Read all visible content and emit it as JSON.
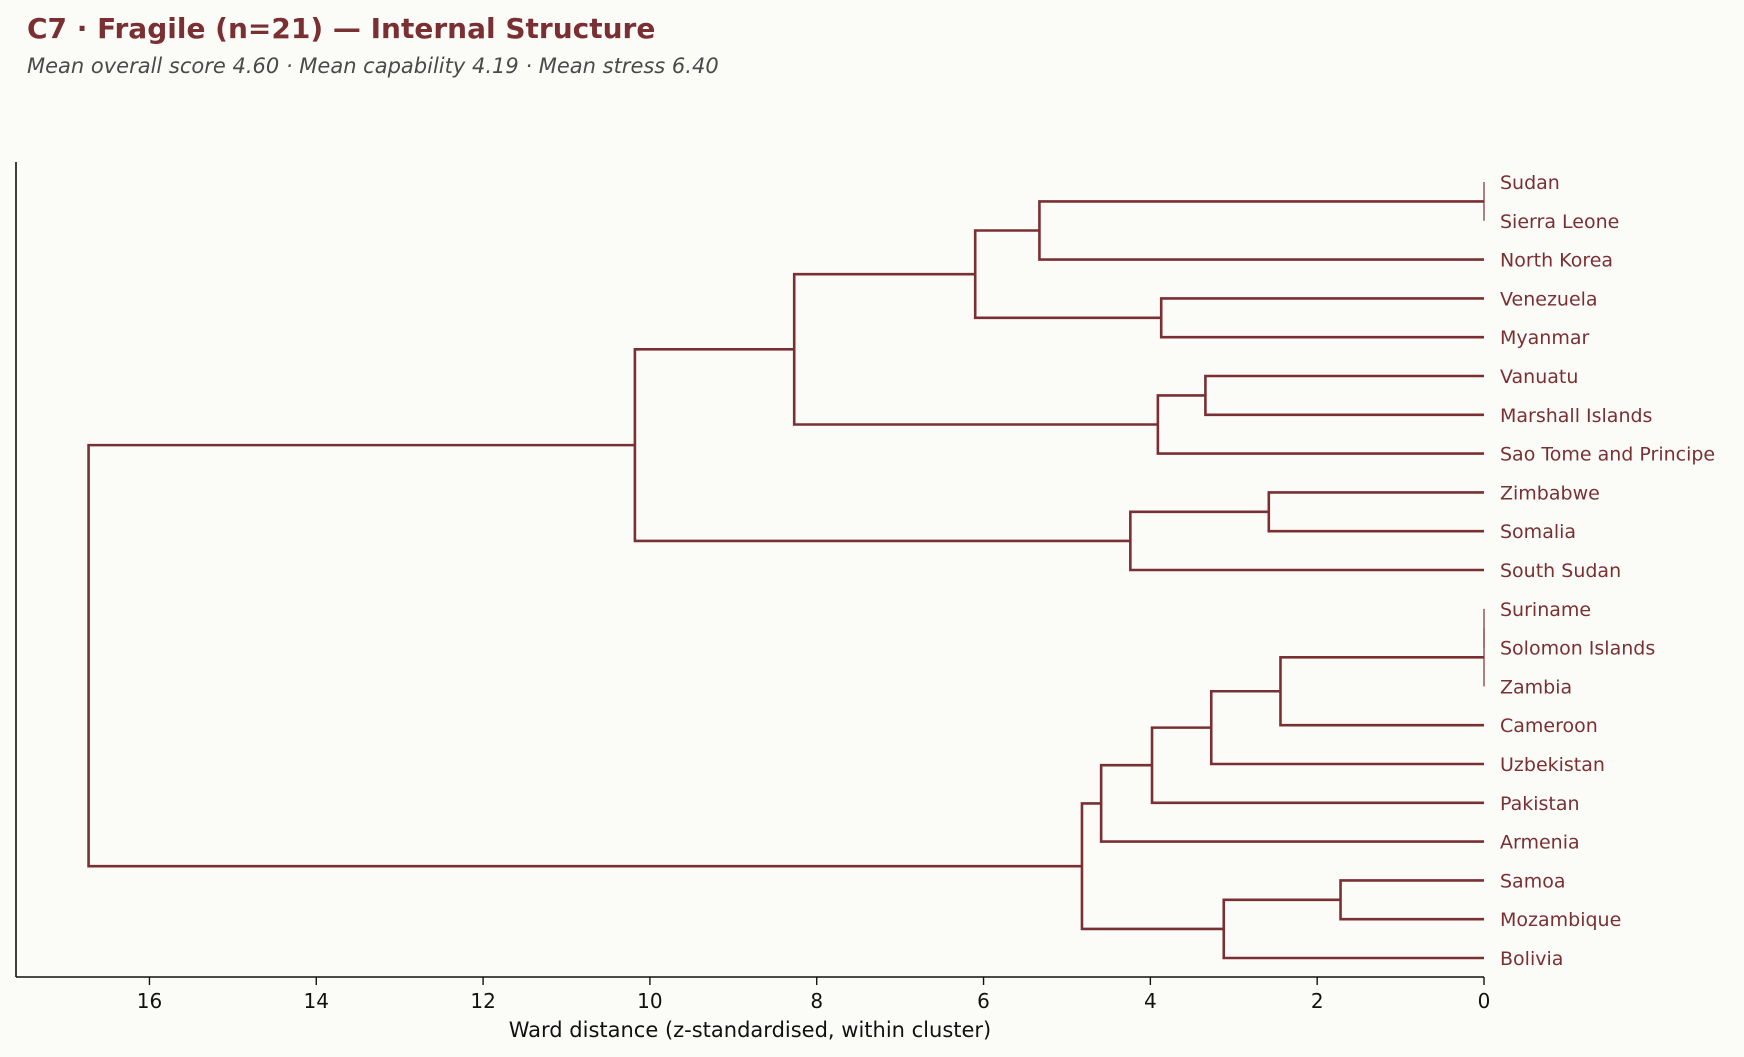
{
  "header": {
    "title": "C7 · Fragile (n=21) — Internal Structure",
    "subtitle": "Mean overall score 4.60  ·  Mean capability 4.19  ·  Mean stress 6.40"
  },
  "colors": {
    "link": "#7a3033",
    "label": "#7a3033",
    "axis": "#111111",
    "background": "#fbfbf8"
  },
  "chart_data": {
    "type": "dendrogram",
    "orientation": "horizontal",
    "xlabel": "Ward distance (z-standardised, within cluster)",
    "xlim": [
      17.6,
      0
    ],
    "xticks": [
      16,
      14,
      12,
      10,
      8,
      6,
      4,
      2,
      0
    ],
    "leaves": [
      "Sudan",
      "Sierra Leone",
      "North Korea",
      "Venezuela",
      "Myanmar",
      "Vanuatu",
      "Marshall Islands",
      "Sao Tome and Principe",
      "Zimbabwe",
      "Somalia",
      "South Sudan",
      "Suriname",
      "Solomon Islands",
      "Zambia",
      "Cameroon",
      "Uzbekistan",
      "Pakistan",
      "Armenia",
      "Samoa",
      "Mozambique",
      "Bolivia"
    ],
    "merges": [
      {
        "id": "n1",
        "children": [
          "Sudan",
          "Sierra Leone"
        ],
        "height": 0.0
      },
      {
        "id": "n2",
        "children": [
          "n1",
          "North Korea"
        ],
        "height": 5.33
      },
      {
        "id": "n3",
        "children": [
          "Venezuela",
          "Myanmar"
        ],
        "height": 3.87
      },
      {
        "id": "n4",
        "children": [
          "n2",
          "n3"
        ],
        "height": 6.1
      },
      {
        "id": "n5",
        "children": [
          "Vanuatu",
          "Marshall Islands"
        ],
        "height": 3.34
      },
      {
        "id": "n6",
        "children": [
          "n5",
          "Sao Tome and Principe"
        ],
        "height": 3.91
      },
      {
        "id": "n7",
        "children": [
          "n4",
          "n6"
        ],
        "height": 8.27
      },
      {
        "id": "n8",
        "children": [
          "Zimbabwe",
          "Somalia"
        ],
        "height": 2.58
      },
      {
        "id": "n9",
        "children": [
          "n8",
          "South Sudan"
        ],
        "height": 4.24
      },
      {
        "id": "n10",
        "children": [
          "n7",
          "n9"
        ],
        "height": 10.18
      },
      {
        "id": "n11",
        "children": [
          "Suriname",
          "Solomon Islands"
        ],
        "height": 0.0
      },
      {
        "id": "n12",
        "children": [
          "n11",
          "Zambia"
        ],
        "height": 0.0
      },
      {
        "id": "n13",
        "children": [
          "n12",
          "Cameroon"
        ],
        "height": 2.44
      },
      {
        "id": "n14",
        "children": [
          "n13",
          "Uzbekistan"
        ],
        "height": 3.27
      },
      {
        "id": "n15",
        "children": [
          "n14",
          "Pakistan"
        ],
        "height": 3.98
      },
      {
        "id": "n16",
        "children": [
          "n15",
          "Armenia"
        ],
        "height": 4.59
      },
      {
        "id": "n17",
        "children": [
          "Samoa",
          "Mozambique"
        ],
        "height": 1.72
      },
      {
        "id": "n18",
        "children": [
          "n17",
          "Bolivia"
        ],
        "height": 3.12
      },
      {
        "id": "n19",
        "children": [
          "n16",
          "n18"
        ],
        "height": 4.82
      },
      {
        "id": "n20",
        "children": [
          "n10",
          "n19"
        ],
        "height": 16.73
      }
    ]
  }
}
